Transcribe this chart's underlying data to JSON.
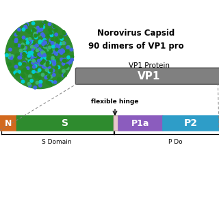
{
  "title_line1": "Norovirus Capsid",
  "title_line2": "90 dimers of VP1 pro",
  "vp1_label_above": "VP1 Protein",
  "vp1_bar_label": "VP1",
  "vp1_bar_color": "#808080",
  "domain_N_label": "N",
  "domain_N_color": "#d2691e",
  "domain_S_label": "S",
  "domain_S_color": "#2e8b2e",
  "domain_hinge_color": "#e8c8cc",
  "domain_P1a_label": "P1a",
  "domain_P1a_color": "#8b5cbe",
  "domain_P2_label": "P2",
  "domain_P2_color": "#2e9dc8",
  "flexible_hinge_label": "flexible hinge",
  "s_domain_label": "S Domain",
  "p_domain_label": "P Do",
  "bg_color": "#ffffff"
}
